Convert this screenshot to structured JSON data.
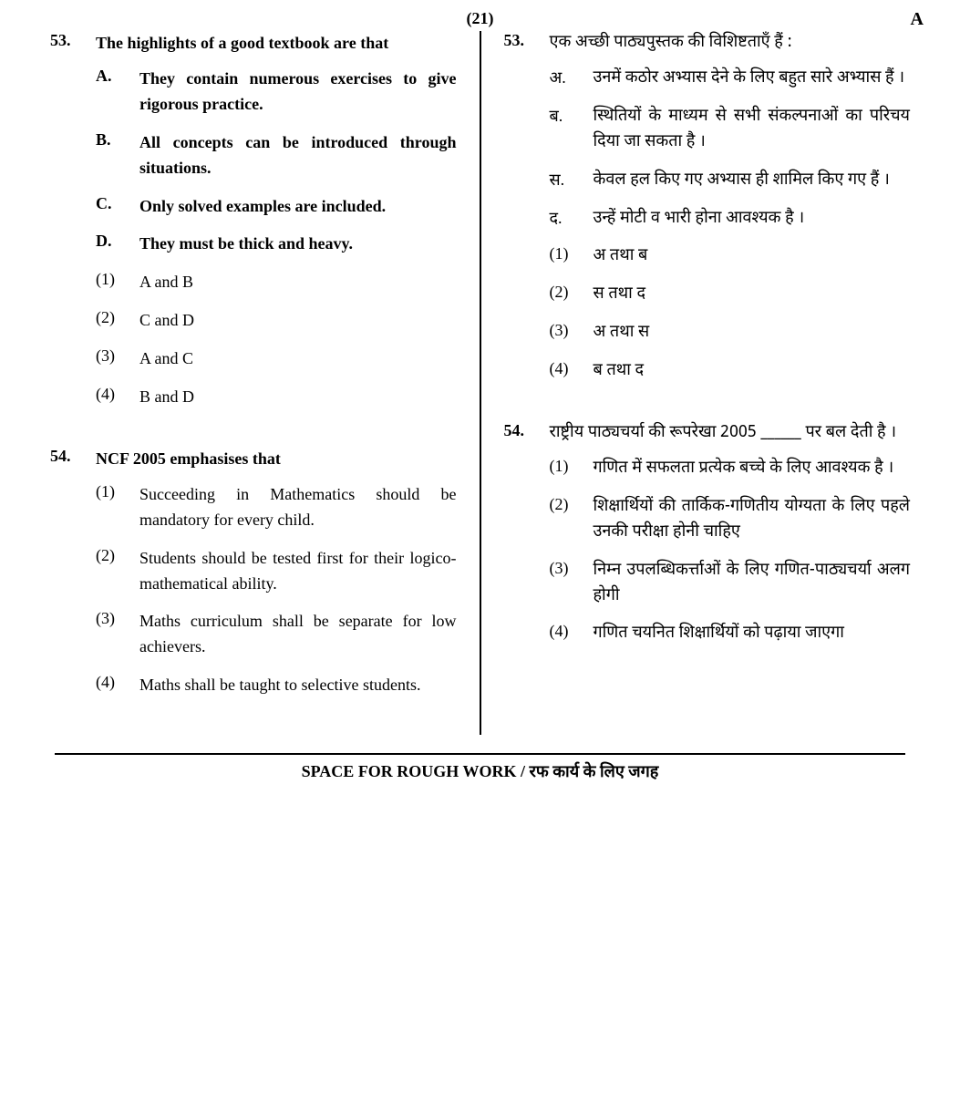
{
  "header": {
    "page_number": "(21)",
    "series": "A"
  },
  "left": {
    "q53": {
      "num": "53.",
      "stem": "The highlights of a good textbook are that",
      "letters": [
        {
          "label": "A.",
          "text": "They contain numerous exercises to give rigorous practice."
        },
        {
          "label": "B.",
          "text": "All concepts can be introduced through situations."
        },
        {
          "label": "C.",
          "text": "Only solved examples are included."
        },
        {
          "label": "D.",
          "text": "They must be thick and heavy."
        }
      ],
      "options": [
        {
          "label": "(1)",
          "text": "A and B"
        },
        {
          "label": "(2)",
          "text": "C and D"
        },
        {
          "label": "(3)",
          "text": "A and C"
        },
        {
          "label": "(4)",
          "text": "B and D"
        }
      ]
    },
    "q54": {
      "num": "54.",
      "stem": "NCF 2005 emphasises that",
      "options": [
        {
          "label": "(1)",
          "text": "Succeeding in Mathematics should be mandatory for every child."
        },
        {
          "label": "(2)",
          "text": "Students should be tested first for their logico-mathematical ability."
        },
        {
          "label": "(3)",
          "text": "Maths curriculum shall be separate for low achievers."
        },
        {
          "label": "(4)",
          "text": "Maths shall be taught to selective students."
        }
      ]
    }
  },
  "right": {
    "q53": {
      "num": "53.",
      "stem": "एक अच्छी पाठ्यपुस्तक की विशिष्टताएँ हैं :",
      "letters": [
        {
          "label": "अ.",
          "text": "उनमें कठोर अभ्यास देने के लिए बहुत सारे अभ्यास हैं ।"
        },
        {
          "label": "ब.",
          "text": "स्थितियों के माध्यम से सभी संकल्पनाओं का परिचय दिया जा सकता है ।"
        },
        {
          "label": "स.",
          "text": "केवल हल किए गए अभ्यास ही शामिल किए गए हैं ।"
        },
        {
          "label": "द.",
          "text": "उन्हें मोटी व भारी होना आवश्यक है ।"
        }
      ],
      "options": [
        {
          "label": "(1)",
          "text": "अ तथा ब"
        },
        {
          "label": "(2)",
          "text": "स तथा द"
        },
        {
          "label": "(3)",
          "text": "अ तथा स"
        },
        {
          "label": "(4)",
          "text": "ब तथा द"
        }
      ]
    },
    "q54": {
      "num": "54.",
      "stem": "राष्ट्रीय पाठ्यचर्या की रूपरेखा 2005 ______ पर बल देती है ।",
      "options": [
        {
          "label": "(1)",
          "text": "गणित में सफलता प्रत्येक बच्चे के लिए आवश्यक है ।"
        },
        {
          "label": "(2)",
          "text": "शिक्षार्थियों की तार्किक-गणितीय योग्यता के लिए पहले उनकी परीक्षा होनी चाहिए"
        },
        {
          "label": "(3)",
          "text": "निम्न उपलब्धिकर्त्ताओं के लिए गणित-पाठ्यचर्या अलग होगी"
        },
        {
          "label": "(4)",
          "text": "गणित चयनित शिक्षार्थियों को पढ़ाया जाएगा"
        }
      ]
    }
  },
  "footer": {
    "text": "SPACE FOR ROUGH WORK / रफ कार्य के लिए जगह"
  }
}
